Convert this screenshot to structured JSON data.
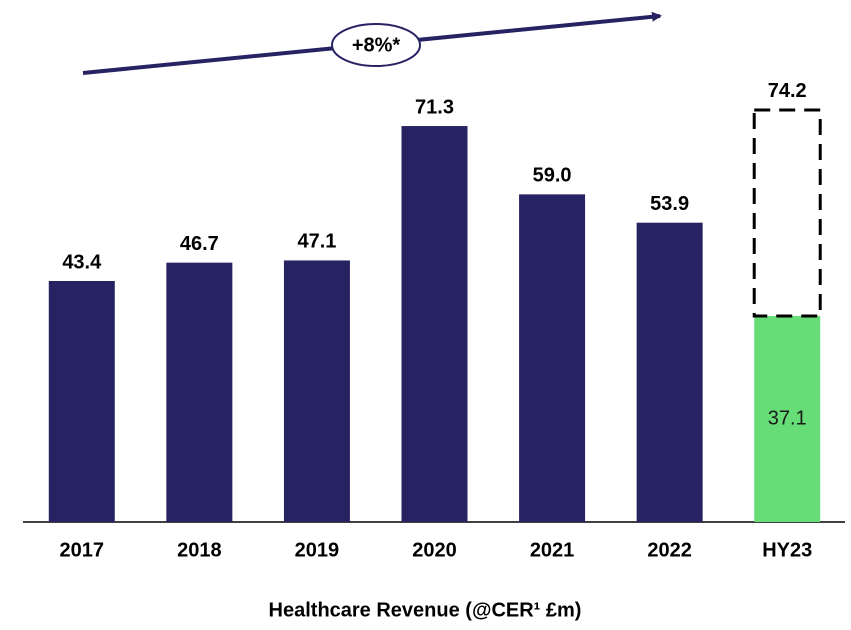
{
  "chart_data": {
    "type": "bar",
    "categories": [
      "2017",
      "2018",
      "2019",
      "2020",
      "2021",
      "2022",
      "HY23"
    ],
    "values": [
      43.4,
      46.7,
      47.1,
      71.3,
      59.0,
      53.9,
      37.1
    ],
    "value_labels": [
      "43.4",
      "46.7",
      "47.1",
      "71.3",
      "59.0",
      "53.9",
      "37.1"
    ],
    "colors": [
      "#272262",
      "#272262",
      "#272262",
      "#272262",
      "#272262",
      "#272262",
      "#66dd77"
    ],
    "dashed_values": [
      null,
      null,
      null,
      null,
      null,
      null,
      74.2
    ],
    "ylim": [
      0,
      94
    ],
    "annotation": "+8%*",
    "xlabel": "Healthcare Revenue (@CER¹ £m)"
  }
}
